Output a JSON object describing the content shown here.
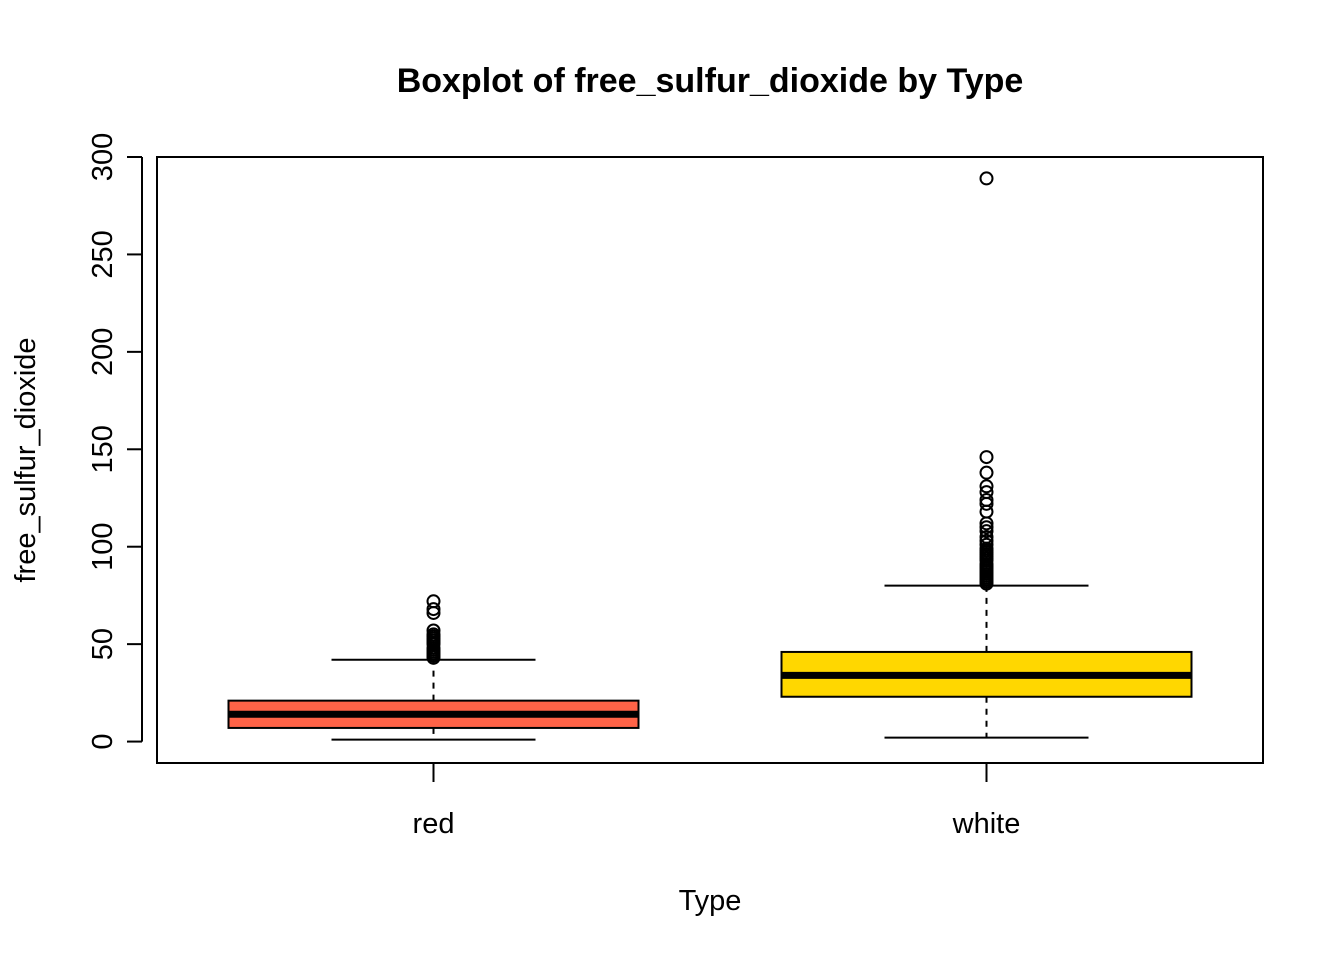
{
  "chart_data": {
    "type": "boxplot",
    "title": "Boxplot of free_sulfur_dioxide by Type",
    "xlabel": "Type",
    "ylabel": "free_sulfur_dioxide",
    "ylim": [
      -11,
      300
    ],
    "yticks": [
      0,
      50,
      100,
      150,
      200,
      250,
      300
    ],
    "ytick_labels": [
      "0",
      "50",
      "100",
      "150",
      "200",
      "250",
      "300"
    ],
    "categories": [
      "red",
      "white"
    ],
    "grid": false,
    "legend": "none",
    "groups": [
      {
        "category": "red",
        "fill": "#FF6347",
        "whisker_low": 1,
        "q1": 7,
        "median": 14,
        "q3": 21,
        "whisker_high": 42,
        "outliers": [
          43,
          44,
          45,
          46,
          47,
          48,
          50,
          51,
          52,
          53,
          54,
          55,
          57,
          66,
          68,
          72
        ]
      },
      {
        "category": "white",
        "fill": "#FFD700",
        "whisker_low": 2,
        "q1": 23,
        "median": 34,
        "q3": 46,
        "whisker_high": 80,
        "outliers": [
          81,
          82,
          83,
          84,
          85,
          86,
          87,
          88,
          89,
          90,
          91,
          93,
          94,
          95,
          96,
          97,
          98,
          99,
          101,
          103,
          105,
          108,
          110,
          112,
          118,
          122,
          124,
          128,
          131,
          138,
          146,
          289
        ]
      }
    ]
  }
}
